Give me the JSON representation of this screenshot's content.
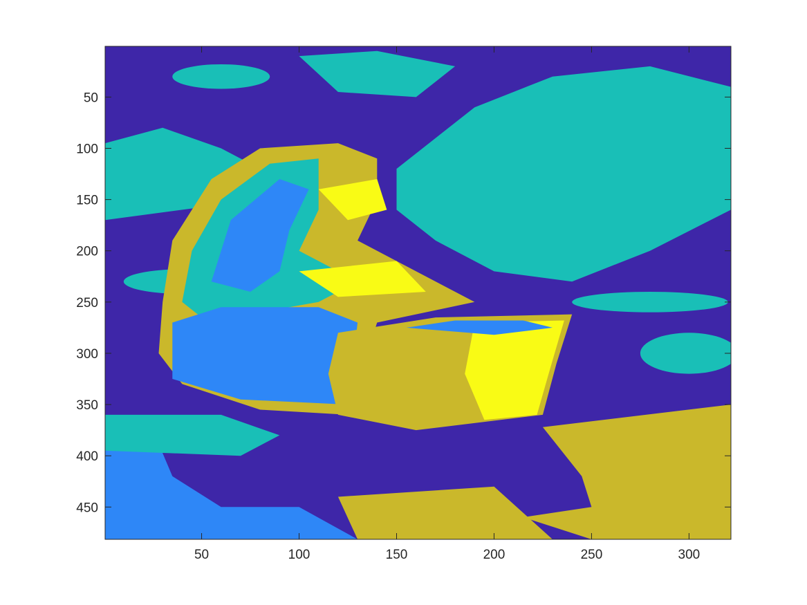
{
  "chart_data": {
    "type": "heatmap",
    "title": "",
    "xlabel": "",
    "ylabel": "",
    "xlim": [
      0.5,
      321.5
    ],
    "ylim": [
      0.5,
      481.5
    ],
    "y_direction": "reverse",
    "x_ticks": [
      50,
      100,
      150,
      200,
      250,
      300
    ],
    "y_ticks": [
      50,
      100,
      150,
      200,
      250,
      300,
      350,
      400,
      450
    ],
    "x_tick_labels": [
      "50",
      "100",
      "150",
      "200",
      "250",
      "300"
    ],
    "y_tick_labels": [
      "50",
      "100",
      "150",
      "200",
      "250",
      "300",
      "350",
      "400",
      "450"
    ],
    "grid": false,
    "colorbar": false,
    "image_size": {
      "columns": 321,
      "rows": 481
    },
    "colormap": "parula",
    "cluster_levels": [
      {
        "level": 1,
        "color": "#3e26a8"
      },
      {
        "level": 2,
        "color": "#2e87f7"
      },
      {
        "level": 3,
        "color": "#19bfb7"
      },
      {
        "level": 4,
        "color": "#cab82b"
      },
      {
        "level": 5,
        "color": "#f9fb15"
      }
    ]
  }
}
